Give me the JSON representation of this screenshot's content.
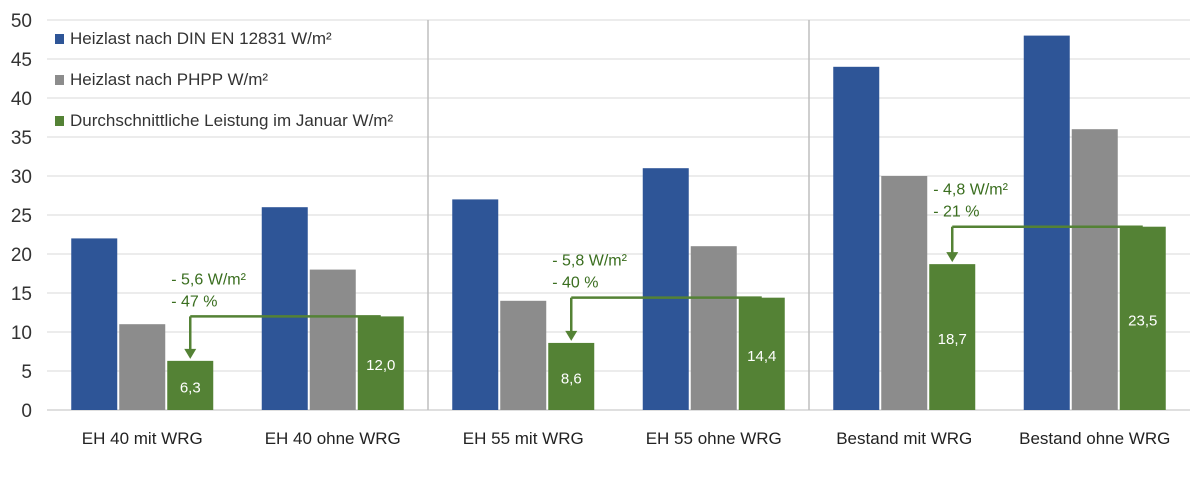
{
  "chart_data": {
    "type": "bar",
    "categories": [
      "EH 40 mit WRG",
      "EH 40 ohne WRG",
      "EH 55 mit WRG",
      "EH 55 ohne WRG",
      "Bestand mit WRG",
      "Bestand ohne WRG"
    ],
    "series": [
      {
        "name": "Heizlast nach DIN EN 12831 W/m²",
        "color": "#2e5597",
        "values": [
          22,
          26,
          27,
          31,
          44,
          48
        ],
        "labels": [
          "",
          "",
          "",
          "",
          "",
          ""
        ]
      },
      {
        "name": "Heizlast nach PHPP W/m²",
        "color": "#8c8c8c",
        "values": [
          11,
          18,
          14,
          21,
          30,
          36
        ],
        "labels": [
          "",
          "",
          "",
          "",
          "",
          ""
        ]
      },
      {
        "name": "Durchschnittliche Leistung im Januar W/m²",
        "color": "#548235",
        "values": [
          6.3,
          12.0,
          8.6,
          14.4,
          18.7,
          23.5
        ],
        "labels": [
          "6,3",
          "12,0",
          "8,6",
          "14,4",
          "18,7",
          "23,5"
        ]
      }
    ],
    "yticks": [
      "0",
      "5",
      "10",
      "15",
      "20",
      "25",
      "30",
      "35",
      "40",
      "45",
      "50"
    ],
    "ylim": [
      0,
      50
    ],
    "grid": true,
    "legend": "top-left",
    "separators_after": [
      2,
      4
    ],
    "annotations": [
      {
        "from": 1,
        "to": 0,
        "y": 12.0,
        "text1": "- 5,6 W/m²",
        "text2": "- 47 %"
      },
      {
        "from": 3,
        "to": 2,
        "y": 14.4,
        "text1": "- 5,8 W/m²",
        "text2": "- 40 %"
      },
      {
        "from": 5,
        "to": 4,
        "y": 23.5,
        "text1": "- 4,8 W/m²",
        "text2": "- 21 %"
      }
    ]
  }
}
